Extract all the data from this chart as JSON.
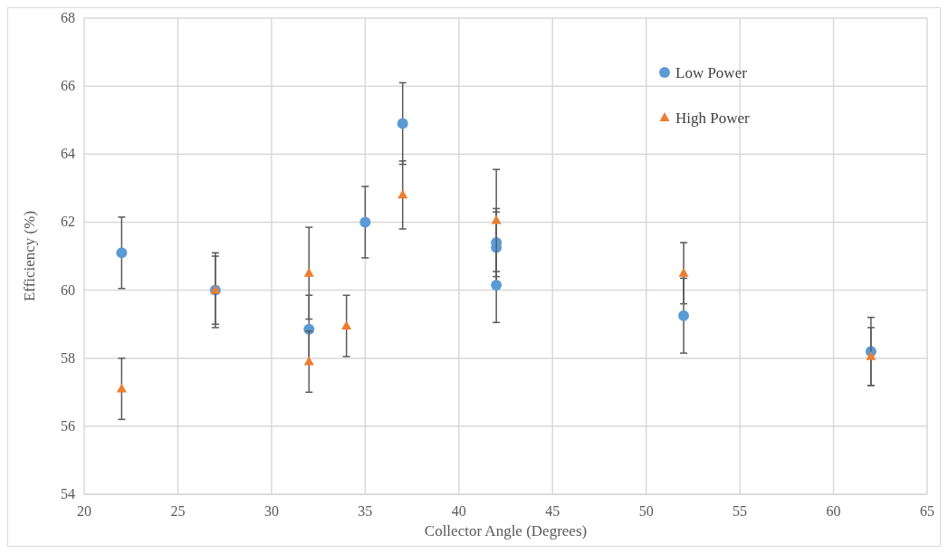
{
  "chart_data": {
    "type": "scatter",
    "xlabel": "Collector Angle (Degrees)",
    "ylabel": "Efficiency (%)",
    "xlim": [
      20,
      65
    ],
    "xticks": [
      20,
      25,
      30,
      35,
      40,
      45,
      50,
      55,
      60,
      65
    ],
    "ylim": [
      54,
      68
    ],
    "yticks": [
      54,
      56,
      58,
      60,
      62,
      64,
      66,
      68
    ],
    "grid": true,
    "legend": "top right",
    "series": [
      {
        "name": "Low Power",
        "color": "#5b9bd5",
        "marker": "circle",
        "x": [
          22,
          27,
          32,
          35,
          37,
          42,
          42,
          42,
          52,
          62
        ],
        "values": [
          61.1,
          60.0,
          58.85,
          62.0,
          64.9,
          61.4,
          61.25,
          60.15,
          59.25,
          58.2
        ],
        "errors": [
          1.05,
          1.0,
          1.0,
          1.05,
          1.2,
          1.0,
          1.05,
          1.1,
          1.1,
          1.0
        ]
      },
      {
        "name": "High Power",
        "color": "#ed7d31",
        "marker": "triangle",
        "x": [
          22,
          27,
          32,
          32,
          34,
          37,
          42,
          52,
          62
        ],
        "values": [
          57.1,
          60.0,
          60.5,
          57.9,
          58.95,
          62.8,
          62.05,
          60.5,
          58.05
        ],
        "errors": [
          0.9,
          1.1,
          1.35,
          0.9,
          0.9,
          1.0,
          1.5,
          0.9,
          0.85
        ]
      }
    ]
  }
}
